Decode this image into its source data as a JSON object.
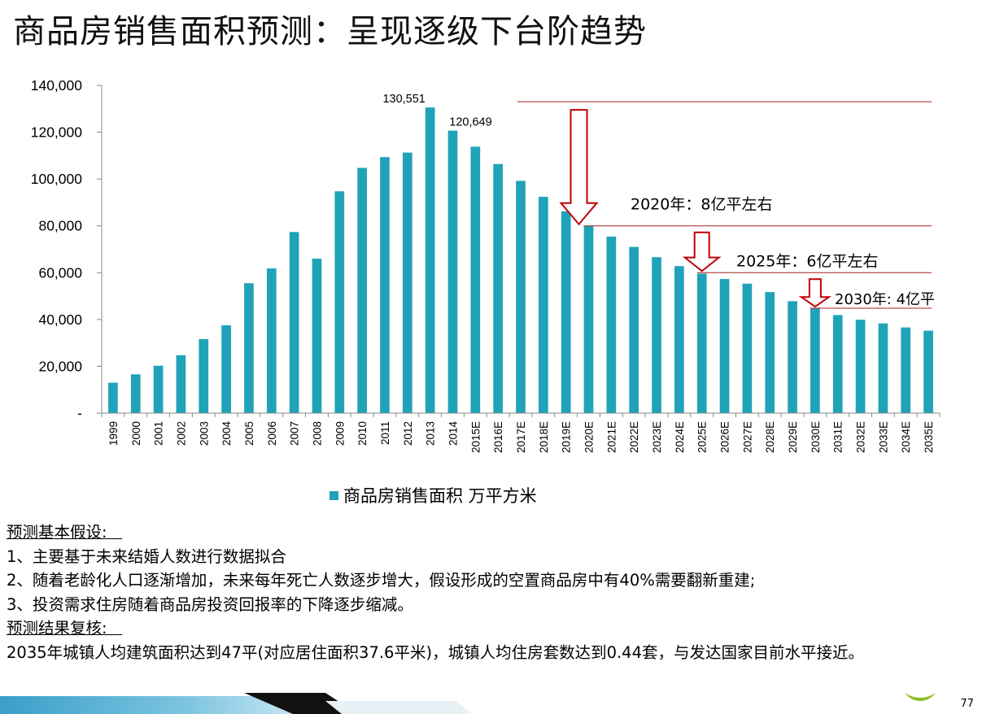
{
  "slide": {
    "title": "商品房销售面积预测：呈现逐级下台阶趋势",
    "page_number": "77"
  },
  "chart_data": {
    "type": "bar",
    "categories": [
      "1999",
      "2000",
      "2001",
      "2002",
      "2003",
      "2004",
      "2005",
      "2006",
      "2007",
      "2008",
      "2009",
      "2010",
      "2011",
      "2012",
      "2013",
      "2014",
      "2015E",
      "2016E",
      "2017E",
      "2018E",
      "2019E",
      "2020E",
      "2021E",
      "2022E",
      "2023E",
      "2024E",
      "2025E",
      "2026E",
      "2027E",
      "2028E",
      "2029E",
      "2030E",
      "2031E",
      "2032E",
      "2033E",
      "2034E",
      "2035E"
    ],
    "series": [
      {
        "name": "商品房销售面积  万平方米",
        "values": [
          12998,
          16570,
          20242,
          24734,
          31600,
          37500,
          55500,
          61800,
          77350,
          65970,
          94755,
          104765,
          109367,
          111304,
          130551,
          120649,
          113800,
          106400,
          99200,
          92400,
          86200,
          80000,
          75400,
          71000,
          66600,
          62800,
          59600,
          57300,
          55300,
          51700,
          47800,
          44800,
          41900,
          39900,
          38300,
          36600,
          35200
        ]
      }
    ],
    "ylim": [
      0,
      140000
    ],
    "yticks": [
      0,
      20000,
      40000,
      60000,
      80000,
      100000,
      120000,
      140000
    ],
    "ytick_labels": [
      "-",
      "20,000",
      "40,000",
      "60,000",
      "80,000",
      "100,000",
      "120,000",
      "140,000"
    ],
    "data_labels": [
      {
        "category": "2013",
        "text": "130,551"
      },
      {
        "category": "2014",
        "text": "120,649"
      }
    ],
    "annotations": [
      {
        "text": "2020年：8亿平左右",
        "category": "2020E",
        "level": 80000
      },
      {
        "text": "2025年：6亿平左右",
        "category": "2025E",
        "level": 60000
      },
      {
        "text": "2030年: 4亿平",
        "category": "2030E",
        "level": 44800
      }
    ],
    "reference_level": 133000,
    "bar_color": "#1fa3b8",
    "annotation_color": "#c00000",
    "legend_position": "bottom",
    "grid": false
  },
  "notes": {
    "heading1": "预测基本假设:",
    "items": [
      "1、主要基于未来结婚人数进行数据拟合",
      "2、随着老龄化人口逐渐增加，未来每年死亡人数逐步增大，假设形成的空置商品房中有40%需要翻新重建;",
      "3、投资需求住房随着商品房投资回报率的下降逐步缩减。"
    ],
    "heading2": "预测结果复核:",
    "conclusion": "2035年城镇人均建筑面积达到47平(对应居住面积37.6平米)，城镇人均住房套数达到0.44套，与发达国家目前水平接近。"
  }
}
